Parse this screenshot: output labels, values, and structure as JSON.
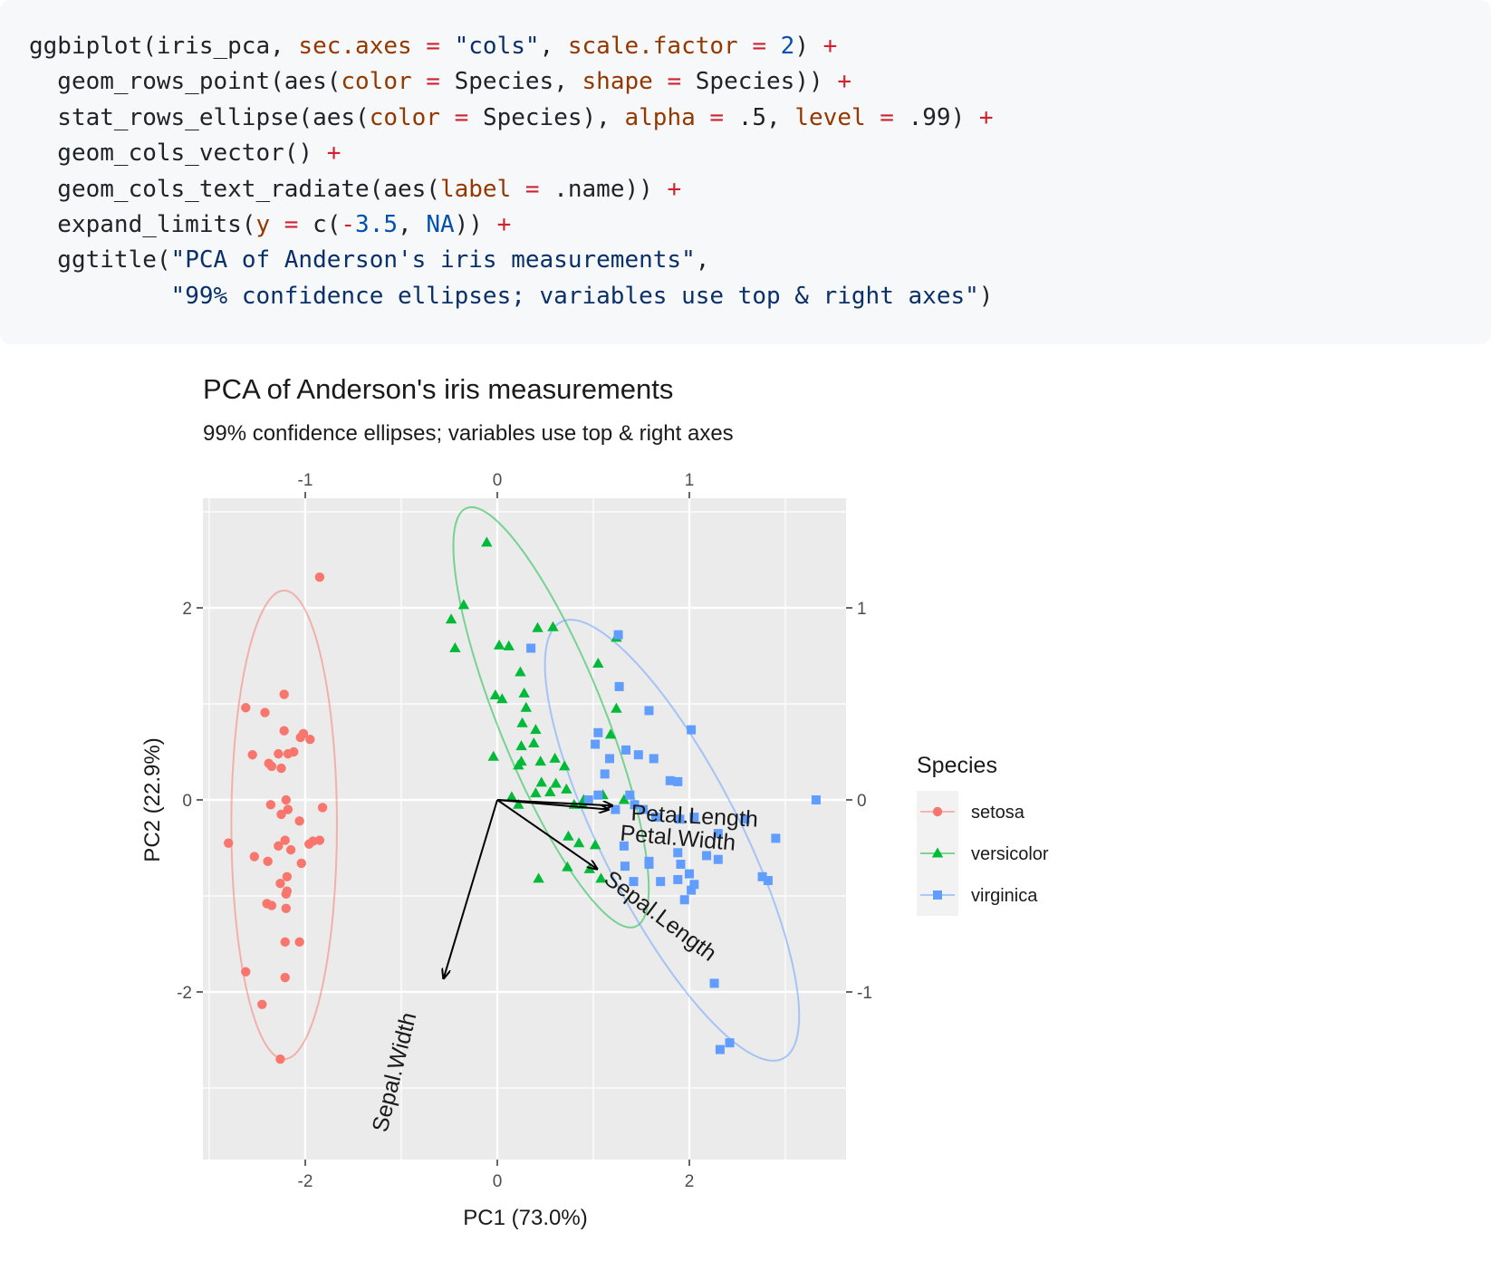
{
  "code": {
    "lines": [
      [
        [
          "plain",
          "ggbiplot(iris_pca, "
        ],
        [
          "arg",
          "sec.axes"
        ],
        [
          "op",
          " = "
        ],
        [
          "str",
          "\"cols\""
        ],
        [
          "plain",
          ", "
        ],
        [
          "arg",
          "scale.factor"
        ],
        [
          "op",
          " = "
        ],
        [
          "num",
          "2"
        ],
        [
          "plain",
          ") "
        ],
        [
          "op",
          "+"
        ]
      ],
      [
        [
          "plain",
          "  geom_rows_point(aes("
        ],
        [
          "arg",
          "color"
        ],
        [
          "op",
          " = "
        ],
        [
          "plain",
          "Species, "
        ],
        [
          "arg",
          "shape"
        ],
        [
          "op",
          " = "
        ],
        [
          "plain",
          "Species)) "
        ],
        [
          "op",
          "+"
        ]
      ],
      [
        [
          "plain",
          "  stat_rows_ellipse(aes("
        ],
        [
          "arg",
          "color"
        ],
        [
          "op",
          " = "
        ],
        [
          "plain",
          "Species), "
        ],
        [
          "arg",
          "alpha"
        ],
        [
          "op",
          " = "
        ],
        [
          "plain",
          ".5, "
        ],
        [
          "arg",
          "level"
        ],
        [
          "op",
          " = "
        ],
        [
          "plain",
          ".99) "
        ],
        [
          "op",
          "+"
        ]
      ],
      [
        [
          "plain",
          "  geom_cols_vector() "
        ],
        [
          "op",
          "+"
        ]
      ],
      [
        [
          "plain",
          "  geom_cols_text_radiate(aes("
        ],
        [
          "arg",
          "label"
        ],
        [
          "op",
          " = "
        ],
        [
          "plain",
          ".name)) "
        ],
        [
          "op",
          "+"
        ]
      ],
      [
        [
          "plain",
          "  expand_limits("
        ],
        [
          "arg",
          "y"
        ],
        [
          "op",
          " = "
        ],
        [
          "plain",
          "c("
        ],
        [
          "op",
          "-"
        ],
        [
          "num",
          "3.5"
        ],
        [
          "plain",
          ", "
        ],
        [
          "num",
          "NA"
        ],
        [
          "plain",
          ")) "
        ],
        [
          "op",
          "+"
        ]
      ],
      [
        [
          "plain",
          "  ggtitle("
        ],
        [
          "str",
          "\"PCA of Anderson's iris measurements\""
        ],
        [
          "plain",
          ","
        ]
      ],
      [
        [
          "plain",
          "          "
        ],
        [
          "str",
          "\"99% confidence ellipses; variables use top & right axes\""
        ],
        [
          "plain",
          ")"
        ]
      ]
    ]
  },
  "chart_data": {
    "type": "scatter",
    "title": "PCA of Anderson's iris measurements",
    "subtitle": "99% confidence ellipses; variables use top & right axes",
    "xlabel": "PC1 (73.0%)",
    "ylabel": "PC2 (22.9%)",
    "xlim": [
      -3.05,
      3.6
    ],
    "ylim": [
      -3.8,
      3.1
    ],
    "x_ticks": [
      "-2",
      "0",
      "2"
    ],
    "y_ticks": [
      "-2",
      "0",
      "2"
    ],
    "sec_x_ticks": [
      "-1",
      "0",
      "1"
    ],
    "sec_y_ticks": [
      "-1",
      "0",
      "1"
    ],
    "grid": true,
    "legend": {
      "title": "Species",
      "position": "right",
      "entries": [
        "setosa",
        "versicolor",
        "virginica"
      ]
    },
    "colors": {
      "setosa": "#F8766D",
      "versicolor": "#00BA38",
      "virginica": "#619CFF",
      "panel": "#EBEBEB",
      "grid": "#FFFFFF",
      "axis_text": "#4D4D4D"
    },
    "series": [
      {
        "name": "setosa",
        "shape": "circle",
        "points": [
          [
            -1.85,
            2.32
          ],
          [
            -2.22,
            1.1
          ],
          [
            -2.62,
            0.96
          ],
          [
            -2.42,
            0.91
          ],
          [
            -2.22,
            0.72
          ],
          [
            -2.02,
            0.69
          ],
          [
            -2.05,
            0.65
          ],
          [
            -1.95,
            0.63
          ],
          [
            -2.12,
            0.5
          ],
          [
            -2.18,
            0.48
          ],
          [
            -2.28,
            0.48
          ],
          [
            -2.55,
            0.47
          ],
          [
            -2.38,
            0.38
          ],
          [
            -2.35,
            0.35
          ],
          [
            -2.25,
            0.33
          ],
          [
            -2.2,
            0.0
          ],
          [
            -2.36,
            -0.05
          ],
          [
            -2.18,
            -0.1
          ],
          [
            -2.25,
            -0.15
          ],
          [
            -1.82,
            -0.08
          ],
          [
            -2.06,
            -0.22
          ],
          [
            -2.8,
            -0.45
          ],
          [
            -2.21,
            -0.42
          ],
          [
            -2.28,
            -0.48
          ],
          [
            -2.15,
            -0.52
          ],
          [
            -1.92,
            -0.43
          ],
          [
            -1.85,
            -0.42
          ],
          [
            -1.96,
            -0.46
          ],
          [
            -2.53,
            -0.59
          ],
          [
            -2.39,
            -0.64
          ],
          [
            -2.04,
            -0.66
          ],
          [
            -2.19,
            -0.8
          ],
          [
            -2.26,
            -0.87
          ],
          [
            -2.19,
            -0.95
          ],
          [
            -2.2,
            -0.98
          ],
          [
            -2.35,
            -1.1
          ],
          [
            -2.4,
            -1.08
          ],
          [
            -2.2,
            -1.13
          ],
          [
            -2.21,
            -1.48
          ],
          [
            -2.06,
            -1.48
          ],
          [
            -2.21,
            -1.85
          ],
          [
            -2.62,
            -1.79
          ],
          [
            -2.45,
            -2.13
          ],
          [
            -2.26,
            -2.7
          ]
        ]
      },
      {
        "name": "versicolor",
        "shape": "triangle",
        "points": [
          [
            -0.11,
            2.68
          ],
          [
            -0.35,
            2.03
          ],
          [
            -0.48,
            1.88
          ],
          [
            -0.44,
            1.58
          ],
          [
            0.02,
            1.61
          ],
          [
            0.12,
            1.6
          ],
          [
            0.42,
            1.79
          ],
          [
            0.58,
            1.8
          ],
          [
            1.24,
            1.69
          ],
          [
            1.05,
            1.42
          ],
          [
            0.24,
            1.33
          ],
          [
            0.28,
            1.11
          ],
          [
            0.3,
            0.96
          ],
          [
            -0.02,
            1.09
          ],
          [
            0.05,
            1.05
          ],
          [
            0.26,
            0.8
          ],
          [
            0.4,
            0.73
          ],
          [
            0.25,
            0.56
          ],
          [
            0.38,
            0.59
          ],
          [
            1.24,
            0.95
          ],
          [
            1.18,
            0.68
          ],
          [
            -0.04,
            0.45
          ],
          [
            0.22,
            0.36
          ],
          [
            0.25,
            0.4
          ],
          [
            0.45,
            0.4
          ],
          [
            0.6,
            0.43
          ],
          [
            0.7,
            0.35
          ],
          [
            0.46,
            0.18
          ],
          [
            0.61,
            0.17
          ],
          [
            0.72,
            0.11
          ],
          [
            0.4,
            0.07
          ],
          [
            0.55,
            0.08
          ],
          [
            0.15,
            0.03
          ],
          [
            0.22,
            -0.05
          ],
          [
            0.8,
            -0.05
          ],
          [
            0.9,
            0.0
          ],
          [
            1.1,
            0.05
          ],
          [
            1.32,
            0.0
          ],
          [
            0.74,
            -0.38
          ],
          [
            0.85,
            -0.45
          ],
          [
            1.02,
            -0.47
          ],
          [
            0.73,
            -0.7
          ],
          [
            0.43,
            -0.82
          ],
          [
            1.08,
            -0.82
          ],
          [
            0.96,
            -0.72
          ],
          [
            0.89,
            -0.05
          ]
        ]
      },
      {
        "name": "virginica",
        "shape": "square",
        "points": [
          [
            1.26,
            1.72
          ],
          [
            1.27,
            1.18
          ],
          [
            1.58,
            0.93
          ],
          [
            2.02,
            0.73
          ],
          [
            0.35,
            1.58
          ],
          [
            1.34,
            0.52
          ],
          [
            1.47,
            0.47
          ],
          [
            1.63,
            0.43
          ],
          [
            1.05,
            0.7
          ],
          [
            1.02,
            0.58
          ],
          [
            1.17,
            0.43
          ],
          [
            1.8,
            0.2
          ],
          [
            1.88,
            0.19
          ],
          [
            1.12,
            0.27
          ],
          [
            1.05,
            0.05
          ],
          [
            1.38,
            0.05
          ],
          [
            0.95,
            0.0
          ],
          [
            1.43,
            -0.05
          ],
          [
            1.23,
            -0.1
          ],
          [
            1.52,
            -0.1
          ],
          [
            1.65,
            -0.18
          ],
          [
            1.9,
            -0.2
          ],
          [
            2.05,
            -0.18
          ],
          [
            2.3,
            -0.35
          ],
          [
            2.58,
            -0.2
          ],
          [
            2.9,
            -0.4
          ],
          [
            1.32,
            -0.48
          ],
          [
            1.58,
            -0.64
          ],
          [
            1.33,
            -0.69
          ],
          [
            1.58,
            -0.67
          ],
          [
            1.88,
            -0.55
          ],
          [
            1.91,
            -0.67
          ],
          [
            2.0,
            -0.77
          ],
          [
            2.02,
            -0.94
          ],
          [
            2.05,
            -0.88
          ],
          [
            1.95,
            -1.04
          ],
          [
            2.3,
            -0.62
          ],
          [
            2.18,
            -0.58
          ],
          [
            2.76,
            -0.8
          ],
          [
            2.82,
            -0.84
          ],
          [
            1.88,
            -0.83
          ],
          [
            1.42,
            -0.85
          ],
          [
            1.7,
            -0.85
          ],
          [
            3.32,
            0.0
          ],
          [
            2.26,
            -1.91
          ],
          [
            2.32,
            -2.6
          ],
          [
            2.42,
            -2.53
          ]
        ]
      }
    ],
    "ellipses": [
      {
        "series": "setosa",
        "cx": -2.22,
        "cy": -0.26,
        "rx": 0.55,
        "ry": 2.44,
        "rot": 0
      },
      {
        "series": "versicolor",
        "cx": 0.56,
        "cy": 0.86,
        "rx": 0.55,
        "ry": 2.35,
        "rot": -22
      },
      {
        "series": "virginica",
        "cx": 1.82,
        "cy": -0.42,
        "rx": 0.72,
        "ry": 2.55,
        "rot": -27
      }
    ],
    "vectors": [
      {
        "name": "Petal.Length",
        "x": 0.6,
        "y": -0.03
      },
      {
        "name": "Petal.Width",
        "x": 0.58,
        "y": -0.05
      },
      {
        "name": "Sepal.Length",
        "x": 0.52,
        "y": -0.36
      },
      {
        "name": "Sepal.Width",
        "x": -0.28,
        "y": -0.93
      }
    ]
  }
}
